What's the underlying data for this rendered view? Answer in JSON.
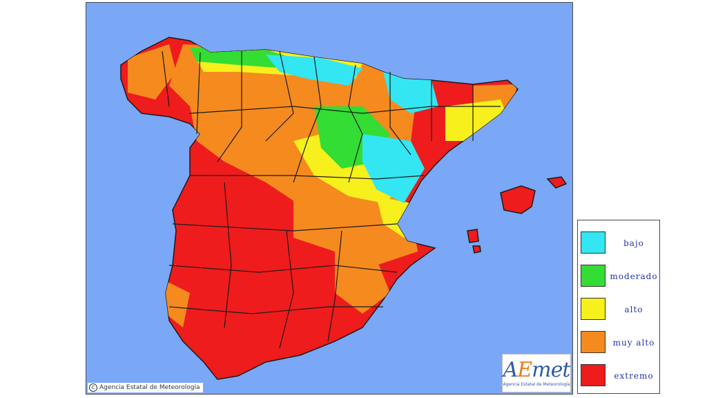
{
  "copyright": "Agencia Estatal de Meteorología",
  "logo": {
    "part_a": "A",
    "part_e": "E",
    "part_rest": "met",
    "subtitle": "Agencia Estatal de Meteorología"
  },
  "legend": [
    {
      "label": "bajo",
      "color": "#33e6f2"
    },
    {
      "label": "moderado",
      "color": "#33dd33"
    },
    {
      "label": "alto",
      "color": "#f7f01c"
    },
    {
      "label": "muy alto",
      "color": "#f58a1f"
    },
    {
      "label": "extremo",
      "color": "#ee1c1c"
    }
  ],
  "colors": {
    "sea": "#7aa7f6",
    "border": "#1a1a1a"
  }
}
